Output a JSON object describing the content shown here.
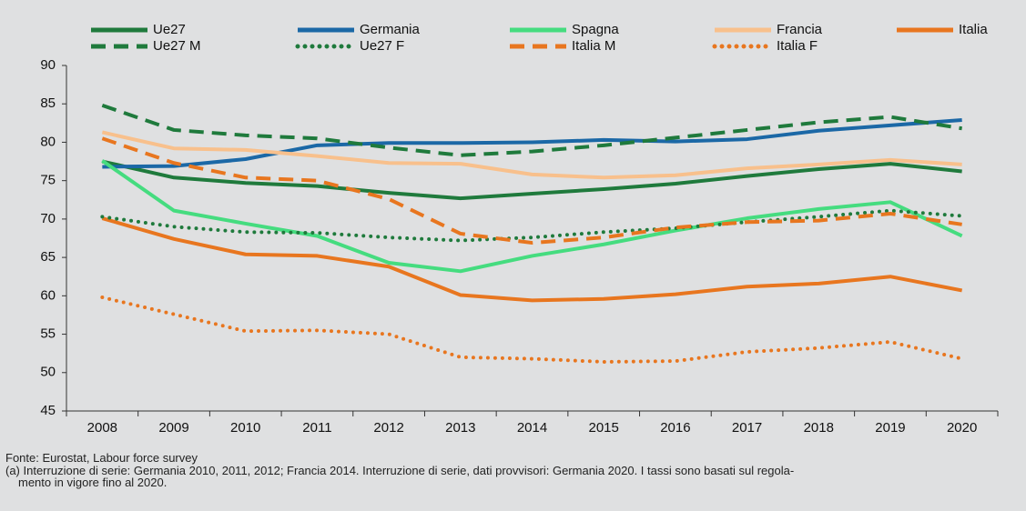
{
  "chart_data": {
    "type": "line",
    "categories": [
      "2008",
      "2009",
      "2010",
      "2011",
      "2012",
      "2013",
      "2014",
      "2015",
      "2016",
      "2017",
      "2018",
      "2019",
      "2020"
    ],
    "ylim": [
      45,
      90
    ],
    "yticks": [
      45,
      50,
      55,
      60,
      65,
      70,
      75,
      80,
      85,
      90
    ],
    "series": [
      {
        "name": "Ue27",
        "color": "#1f7a3c",
        "dash": "solid",
        "values": [
          77.5,
          75.4,
          74.7,
          74.3,
          73.4,
          72.7,
          73.3,
          73.9,
          74.6,
          75.6,
          76.5,
          77.2,
          76.2
        ]
      },
      {
        "name": "Germania",
        "color": "#1b68a6",
        "dash": "solid",
        "values": [
          76.8,
          76.9,
          77.8,
          79.6,
          79.9,
          79.9,
          80.0,
          80.3,
          80.1,
          80.4,
          81.5,
          82.2,
          82.9
        ]
      },
      {
        "name": "Spagna",
        "color": "#45dc7f",
        "dash": "solid",
        "values": [
          77.6,
          71.1,
          69.4,
          67.8,
          64.3,
          63.2,
          65.2,
          66.7,
          68.5,
          70.1,
          71.3,
          72.2,
          67.8
        ]
      },
      {
        "name": "Francia",
        "color": "#f8c08c",
        "dash": "solid",
        "values": [
          81.3,
          79.2,
          79.0,
          78.2,
          77.3,
          77.2,
          75.8,
          75.4,
          75.7,
          76.6,
          77.1,
          77.7,
          77.1
        ]
      },
      {
        "name": "Italia",
        "color": "#e8761f",
        "dash": "solid",
        "values": [
          70.1,
          67.4,
          65.4,
          65.2,
          63.8,
          60.1,
          59.4,
          59.6,
          60.2,
          61.2,
          61.6,
          62.5,
          60.7
        ]
      },
      {
        "name": "Ue27 M",
        "color": "#1f7a3c",
        "dash": "dashed",
        "values": [
          84.8,
          81.6,
          80.9,
          80.5,
          79.3,
          78.3,
          78.8,
          79.6,
          80.6,
          81.6,
          82.6,
          83.3,
          81.8
        ]
      },
      {
        "name": "Ue27 F",
        "color": "#1f7a3c",
        "dash": "dotted",
        "values": [
          70.3,
          69.0,
          68.3,
          68.2,
          67.6,
          67.2,
          67.6,
          68.3,
          68.8,
          69.6,
          70.3,
          71.1,
          70.4
        ]
      },
      {
        "name": "Italia M",
        "color": "#e8761f",
        "dash": "dashed",
        "values": [
          80.5,
          77.3,
          75.4,
          75.0,
          72.6,
          68.1,
          66.9,
          67.6,
          68.9,
          69.6,
          69.8,
          70.7,
          69.3
        ]
      },
      {
        "name": "Italia F",
        "color": "#e8761f",
        "dash": "dotted",
        "values": [
          59.8,
          57.6,
          55.4,
          55.5,
          55.0,
          52.0,
          51.8,
          51.4,
          51.5,
          52.7,
          53.2,
          54.0,
          51.8
        ]
      }
    ]
  },
  "footer": {
    "source": "Fonte: Eurostat, Labour force survey",
    "note": [
      "(a) Interruzione di serie: Germania 2010, 2011, 2012; Francia 2014. Interruzione di serie, dati provvisori: Germania 2020. I tassi sono basati sul regola-",
      "mento in vigore fino al 2020."
    ]
  }
}
